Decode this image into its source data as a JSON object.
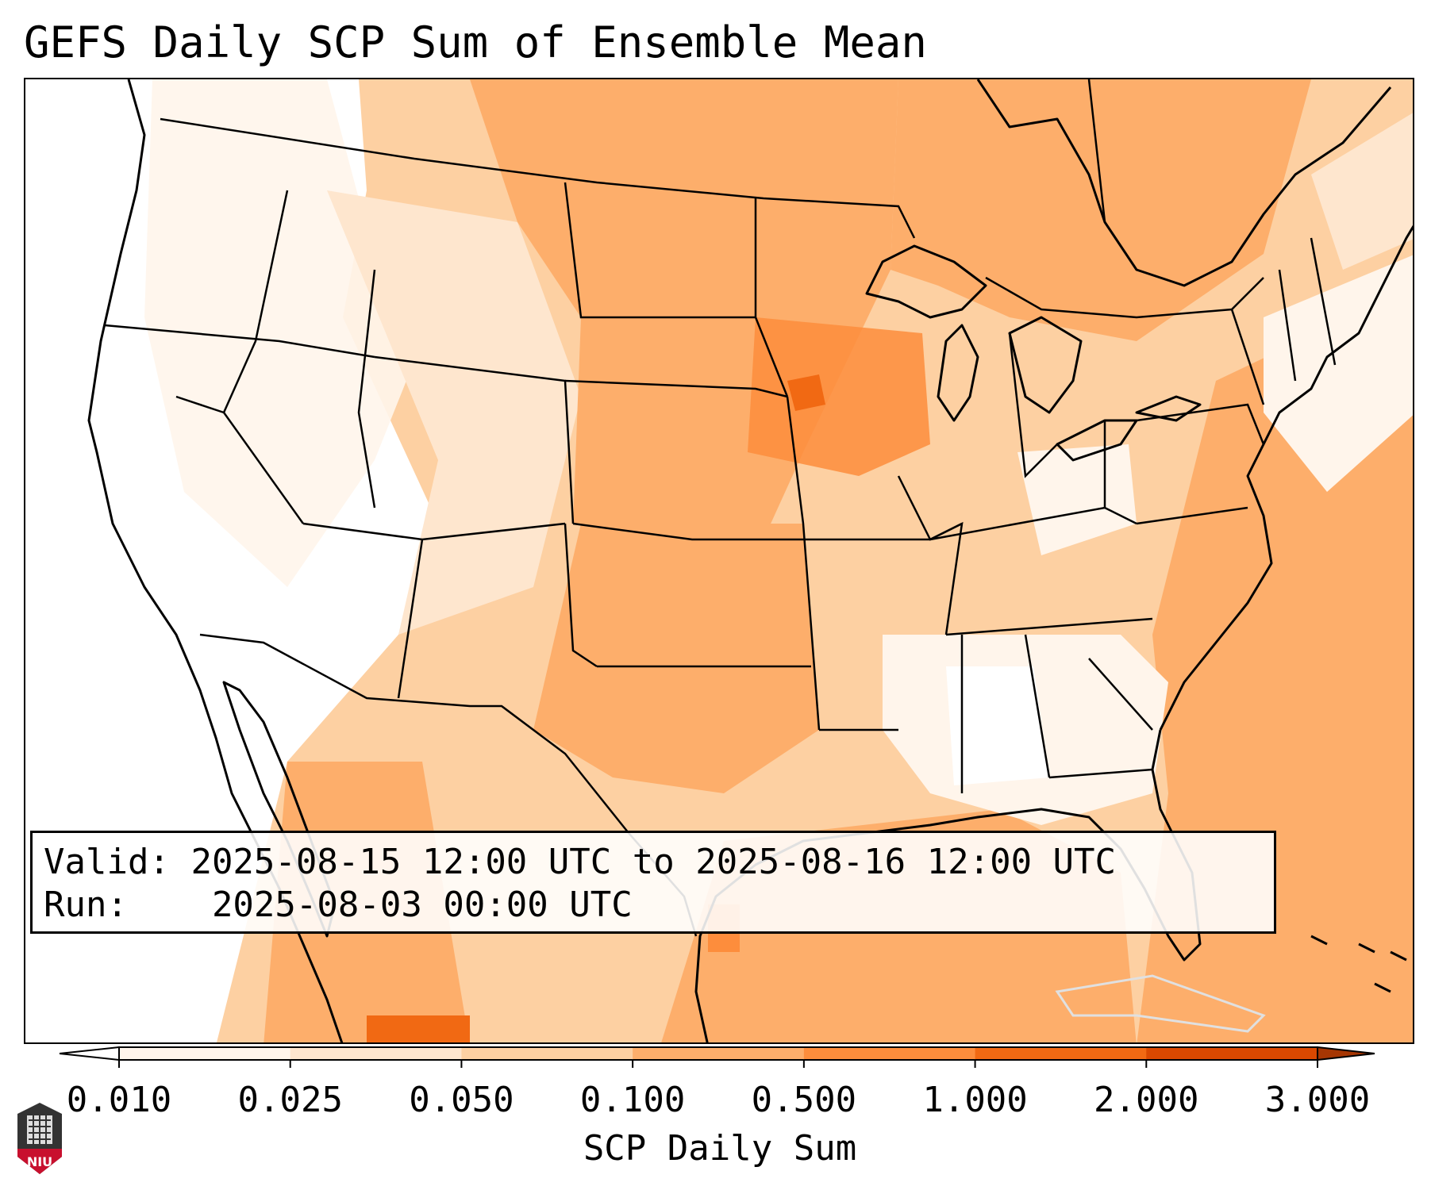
{
  "title": "GEFS Daily SCP Sum of Ensemble Mean",
  "valid_label": "Valid:",
  "valid_range": "2025-08-15 12:00 UTC to 2025-08-16 12:00 UTC",
  "run_label": "Run:",
  "run_time": "2025-08-03 00:00 UTC",
  "colorbar": {
    "label": "SCP Daily Sum",
    "ticks": [
      "0.010",
      "0.025",
      "0.050",
      "0.100",
      "0.500",
      "1.000",
      "2.000",
      "3.000"
    ],
    "colors": [
      "#fff5eb",
      "#fee6ce",
      "#fdd0a2",
      "#fdae6b",
      "#fd8d3c",
      "#f16913",
      "#d94801",
      "#a63603"
    ],
    "under_color": "#ffffff"
  },
  "map": {
    "region": "Continental United States",
    "field_colors": [
      "#ffffff",
      "#fff5eb",
      "#fee6ce",
      "#fdd0a2",
      "#fdae6b",
      "#fd8d3c",
      "#f16913"
    ]
  },
  "logo": {
    "text": "NIU",
    "color": "#c8102e"
  }
}
